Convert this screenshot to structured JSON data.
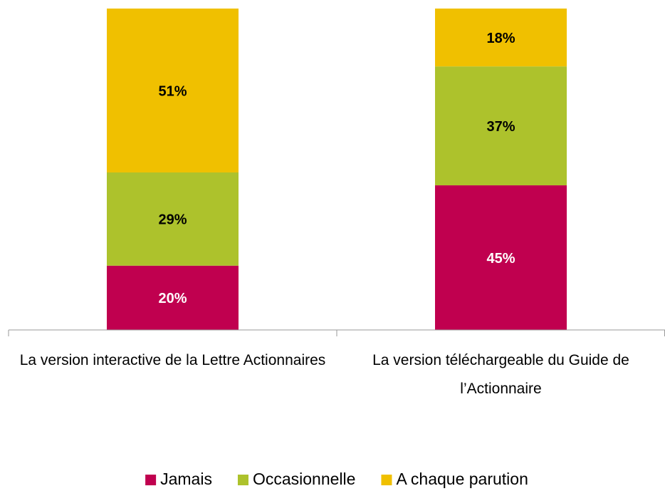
{
  "chart_data": {
    "type": "bar",
    "stacked": true,
    "categories": [
      "La version interactive de la Lettre Actionnaires",
      "La version téléchargeable du Guide de l’Actionnaire"
    ],
    "series": [
      {
        "name": "Jamais",
        "color": "#c0004f",
        "values": [
          20,
          45
        ],
        "value_labels": [
          "20%",
          "45%"
        ]
      },
      {
        "name": "Occasionnelle",
        "color": "#adc22c",
        "values": [
          29,
          37
        ],
        "value_labels": [
          "29%",
          "37%"
        ]
      },
      {
        "name": "A chaque parution",
        "color": "#f0c000",
        "values": [
          51,
          18
        ],
        "value_labels": [
          "51%",
          "18%"
        ]
      }
    ],
    "ylim": [
      0,
      100
    ],
    "legend": "bottom"
  }
}
